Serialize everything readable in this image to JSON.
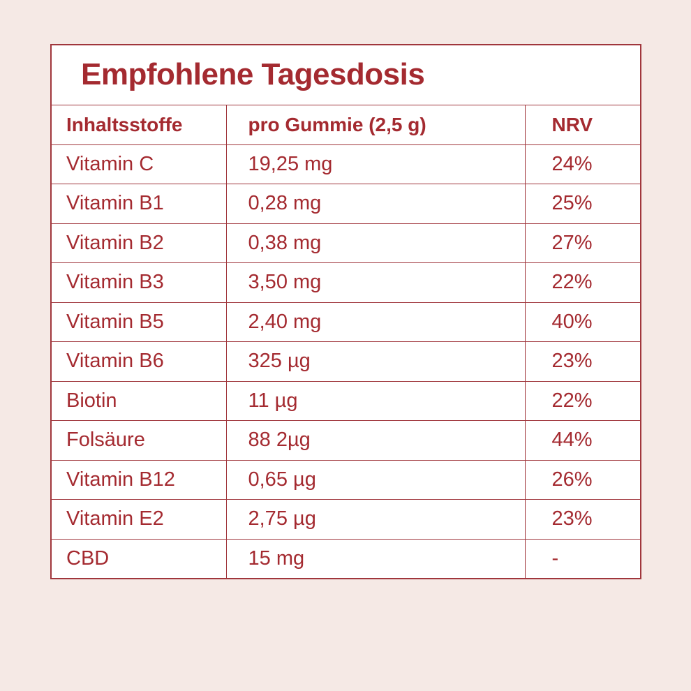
{
  "page": {
    "background_color": "#f5e9e5",
    "cell_background_color": "#ffffff",
    "accent_color": "#a42a30",
    "border_color": "#a0363c"
  },
  "table": {
    "title": "Empfohlene Tagesdosis",
    "headers": [
      "Inhaltsstoffe",
      "pro Gummie (2,5 g)",
      "NRV"
    ],
    "rows": [
      {
        "ingredient": "Vitamin C",
        "amount": "19,25 mg",
        "nrv": "24%"
      },
      {
        "ingredient": "Vitamin B1",
        "amount": "0,28 mg",
        "nrv": "25%"
      },
      {
        "ingredient": "Vitamin B2",
        "amount": "0,38 mg",
        "nrv": "27%"
      },
      {
        "ingredient": "Vitamin B3",
        "amount": "3,50 mg",
        "nrv": "22%"
      },
      {
        "ingredient": "Vitamin B5",
        "amount": "2,40 mg",
        "nrv": "40%"
      },
      {
        "ingredient": "Vitamin B6",
        "amount": "325 µg",
        "nrv": "23%"
      },
      {
        "ingredient": "Biotin",
        "amount": "11 µg",
        "nrv": "22%"
      },
      {
        "ingredient": "Folsäure",
        "amount": "88 2µg",
        "nrv": "44%"
      },
      {
        "ingredient": "Vitamin B12",
        "amount": "0,65 µg",
        "nrv": "26%"
      },
      {
        "ingredient": "Vitamin E2",
        "amount": "2,75 µg",
        "nrv": "23%"
      },
      {
        "ingredient": "CBD",
        "amount": "15 mg",
        "nrv": "-"
      }
    ]
  }
}
